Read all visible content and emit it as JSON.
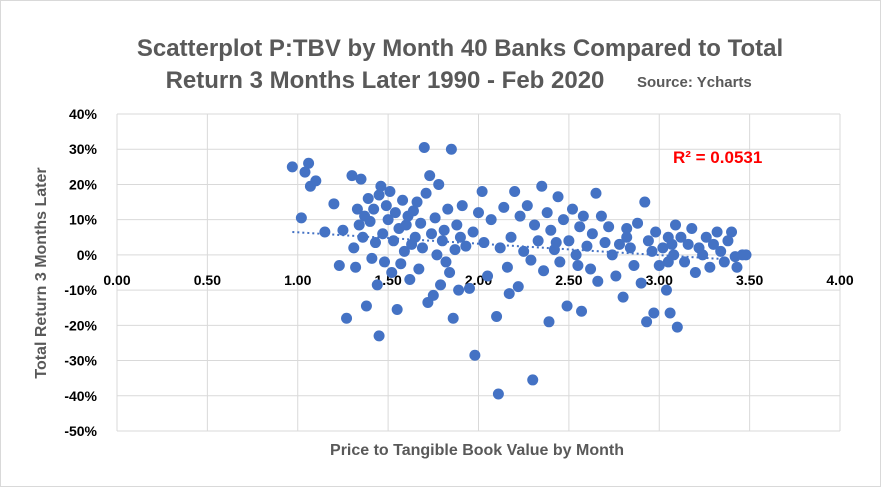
{
  "chart_data": {
    "type": "scatter",
    "title_line1": "Scatterplot P:TBV by Month 40 Banks Compared to Total",
    "title_line2": "Return 3 Months Later 1990 - Feb 2020",
    "source_note": "Source: Ycharts",
    "xlabel": "Price to Tangible Book Value by Month",
    "ylabel": "Total Return 3 Months Later",
    "xlim": [
      0,
      4
    ],
    "ylim": [
      -0.5,
      0.4
    ],
    "x_ticks": [
      {
        "value": 0,
        "label": "0.00"
      },
      {
        "value": 0.5,
        "label": "0.50"
      },
      {
        "value": 1,
        "label": "1.00"
      },
      {
        "value": 1.5,
        "label": "1.50"
      },
      {
        "value": 2,
        "label": "2.00"
      },
      {
        "value": 2.5,
        "label": "2.50"
      },
      {
        "value": 3,
        "label": "3.00"
      },
      {
        "value": 3.5,
        "label": "3.50"
      },
      {
        "value": 4,
        "label": "4.00"
      }
    ],
    "y_ticks": [
      {
        "value": 0.4,
        "label": "40%"
      },
      {
        "value": 0.3,
        "label": "30%"
      },
      {
        "value": 0.2,
        "label": "20%"
      },
      {
        "value": 0.1,
        "label": "10%"
      },
      {
        "value": 0,
        "label": "0%"
      },
      {
        "value": -0.1,
        "label": "-10%"
      },
      {
        "value": -0.2,
        "label": "-20%"
      },
      {
        "value": -0.3,
        "label": "-30%"
      },
      {
        "value": -0.4,
        "label": "-40%"
      },
      {
        "value": -0.5,
        "label": "-50%"
      }
    ],
    "grid": true,
    "r_squared_label": "R² = 0.0531",
    "trendline": {
      "x": [
        0.97,
        3.45
      ],
      "y": [
        0.065,
        -0.015
      ]
    },
    "colors": {
      "points": "#4472c4",
      "trendline": "#4472c4",
      "grid": "#d9d9d9",
      "r2": "#ff0000"
    },
    "points": [
      [
        0.97,
        0.25
      ],
      [
        1.02,
        0.105
      ],
      [
        1.04,
        0.235
      ],
      [
        1.06,
        0.26
      ],
      [
        1.07,
        0.195
      ],
      [
        1.1,
        0.21
      ],
      [
        1.2,
        0.145
      ],
      [
        1.25,
        0.07
      ],
      [
        1.23,
        -0.03
      ],
      [
        1.27,
        -0.18
      ],
      [
        1.3,
        0.225
      ],
      [
        1.31,
        0.02
      ],
      [
        1.32,
        -0.035
      ],
      [
        1.33,
        0.13
      ],
      [
        1.34,
        0.085
      ],
      [
        1.35,
        0.215
      ],
      [
        1.36,
        0.05
      ],
      [
        1.37,
        0.11
      ],
      [
        1.38,
        -0.145
      ],
      [
        1.39,
        0.16
      ],
      [
        1.4,
        0.095
      ],
      [
        1.41,
        -0.01
      ],
      [
        1.42,
        0.13
      ],
      [
        1.43,
        0.035
      ],
      [
        1.44,
        -0.085
      ],
      [
        1.45,
        0.17
      ],
      [
        1.46,
        0.195
      ],
      [
        1.47,
        0.06
      ],
      [
        1.48,
        -0.02
      ],
      [
        1.49,
        0.14
      ],
      [
        1.5,
        0.1
      ],
      [
        1.51,
        0.18
      ],
      [
        1.52,
        -0.05
      ],
      [
        1.53,
        0.04
      ],
      [
        1.54,
        0.12
      ],
      [
        1.55,
        -0.155
      ],
      [
        1.56,
        0.075
      ],
      [
        1.57,
        -0.025
      ],
      [
        1.58,
        0.155
      ],
      [
        1.59,
        0.01
      ],
      [
        1.6,
        0.085
      ],
      [
        1.61,
        0.11
      ],
      [
        1.62,
        -0.07
      ],
      [
        1.63,
        0.03
      ],
      [
        1.64,
        0.125
      ],
      [
        1.65,
        0.05
      ],
      [
        1.66,
        0.15
      ],
      [
        1.67,
        -0.04
      ],
      [
        1.68,
        0.09
      ],
      [
        1.69,
        0.02
      ],
      [
        1.7,
        0.305
      ],
      [
        1.71,
        0.175
      ],
      [
        1.72,
        -0.135
      ],
      [
        1.73,
        0.225
      ],
      [
        1.74,
        0.06
      ],
      [
        1.75,
        -0.115
      ],
      [
        1.76,
        0.105
      ],
      [
        1.77,
        0.0
      ],
      [
        1.78,
        0.2
      ],
      [
        1.79,
        -0.085
      ],
      [
        1.8,
        0.04
      ],
      [
        1.81,
        0.07
      ],
      [
        1.82,
        -0.02
      ],
      [
        1.83,
        0.13
      ],
      [
        1.84,
        -0.05
      ],
      [
        1.85,
        0.3
      ],
      [
        1.86,
        -0.18
      ],
      [
        1.87,
        0.015
      ],
      [
        1.88,
        0.085
      ],
      [
        1.89,
        -0.1
      ],
      [
        1.9,
        0.05
      ],
      [
        1.91,
        0.14
      ],
      [
        1.93,
        0.025
      ],
      [
        1.95,
        -0.095
      ],
      [
        1.97,
        0.065
      ],
      [
        1.98,
        -0.285
      ],
      [
        2.0,
        0.12
      ],
      [
        2.02,
        0.18
      ],
      [
        2.03,
        0.035
      ],
      [
        2.05,
        -0.06
      ],
      [
        2.07,
        0.1
      ],
      [
        2.1,
        -0.175
      ],
      [
        2.11,
        -0.395
      ],
      [
        2.12,
        0.02
      ],
      [
        2.14,
        0.135
      ],
      [
        2.16,
        -0.035
      ],
      [
        2.18,
        0.05
      ],
      [
        2.2,
        0.18
      ],
      [
        2.22,
        -0.09
      ],
      [
        2.23,
        0.11
      ],
      [
        2.25,
        0.01
      ],
      [
        2.27,
        0.14
      ],
      [
        2.29,
        -0.015
      ],
      [
        2.3,
        -0.355
      ],
      [
        2.31,
        0.085
      ],
      [
        2.33,
        0.04
      ],
      [
        2.35,
        0.195
      ],
      [
        2.36,
        -0.045
      ],
      [
        2.38,
        0.12
      ],
      [
        2.39,
        -0.19
      ],
      [
        2.4,
        0.07
      ],
      [
        2.42,
        0.015
      ],
      [
        2.44,
        0.165
      ],
      [
        2.45,
        -0.02
      ],
      [
        2.47,
        0.1
      ],
      [
        2.49,
        -0.145
      ],
      [
        2.5,
        0.04
      ],
      [
        2.52,
        0.13
      ],
      [
        2.54,
        0.0
      ],
      [
        2.55,
        -0.03
      ],
      [
        2.56,
        0.08
      ],
      [
        2.57,
        -0.16
      ],
      [
        2.58,
        0.11
      ],
      [
        2.6,
        0.025
      ],
      [
        2.62,
        -0.04
      ],
      [
        2.63,
        0.06
      ],
      [
        2.65,
        0.175
      ],
      [
        2.66,
        -0.075
      ],
      [
        2.68,
        0.11
      ],
      [
        2.7,
        0.035
      ],
      [
        2.72,
        0.08
      ],
      [
        2.74,
        0.0
      ],
      [
        2.76,
        -0.06
      ],
      [
        2.78,
        0.03
      ],
      [
        2.8,
        -0.12
      ],
      [
        2.82,
        0.05
      ],
      [
        2.84,
        0.02
      ],
      [
        2.86,
        -0.03
      ],
      [
        2.88,
        0.09
      ],
      [
        2.9,
        -0.08
      ],
      [
        2.92,
        0.15
      ],
      [
        2.93,
        -0.19
      ],
      [
        2.94,
        0.04
      ],
      [
        2.96,
        0.01
      ],
      [
        2.97,
        -0.165
      ],
      [
        2.98,
        0.065
      ],
      [
        3.0,
        -0.03
      ],
      [
        3.02,
        0.02
      ],
      [
        3.04,
        -0.1
      ],
      [
        3.05,
        0.05
      ],
      [
        3.06,
        -0.165
      ],
      [
        3.07,
        0.03
      ],
      [
        3.08,
        0.0
      ],
      [
        3.09,
        0.085
      ],
      [
        3.1,
        -0.205
      ],
      [
        3.12,
        0.05
      ],
      [
        3.14,
        -0.02
      ],
      [
        3.16,
        0.03
      ],
      [
        3.18,
        0.075
      ],
      [
        3.2,
        -0.05
      ],
      [
        3.22,
        0.02
      ],
      [
        3.24,
        0.0
      ],
      [
        3.26,
        0.05
      ],
      [
        3.28,
        -0.035
      ],
      [
        3.3,
        0.03
      ],
      [
        3.32,
        0.065
      ],
      [
        3.34,
        0.01
      ],
      [
        3.36,
        -0.02
      ],
      [
        3.38,
        0.04
      ],
      [
        3.4,
        0.065
      ],
      [
        3.42,
        -0.005
      ],
      [
        3.43,
        -0.035
      ],
      [
        3.46,
        0.0
      ],
      [
        3.48,
        0.0
      ],
      [
        1.15,
        0.065
      ],
      [
        1.45,
        -0.23
      ],
      [
        2.17,
        -0.11
      ],
      [
        2.43,
        0.035
      ],
      [
        2.82,
        0.075
      ],
      [
        3.05,
        -0.02
      ]
    ]
  }
}
